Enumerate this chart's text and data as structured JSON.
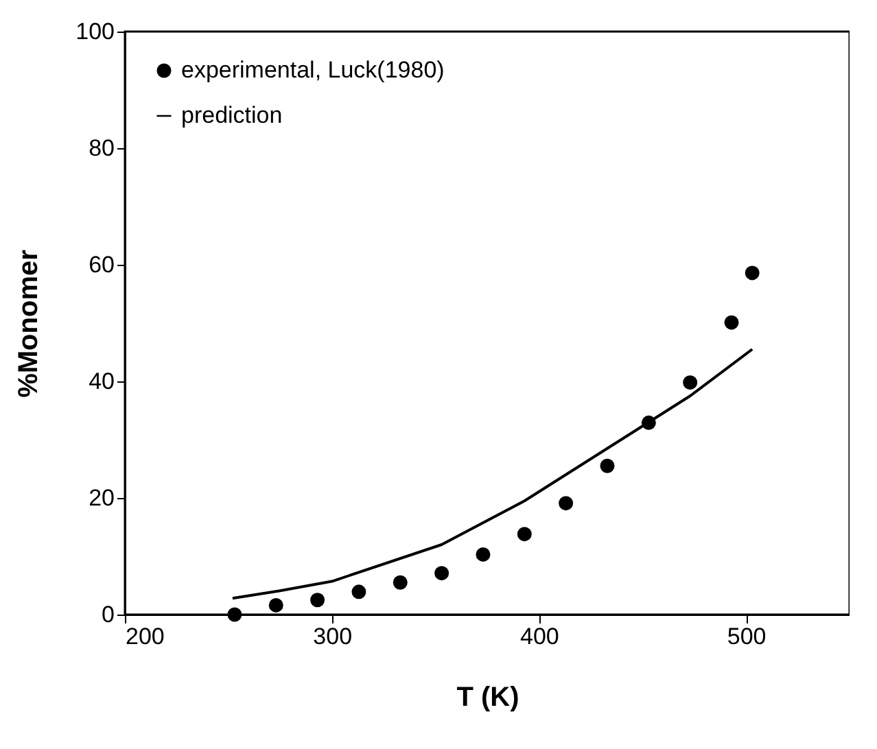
{
  "chart_data": {
    "type": "scatter",
    "xlabel": "T  (K)",
    "ylabel": "%Monomer",
    "xlim": [
      200,
      550
    ],
    "ylim": [
      0,
      100
    ],
    "xticks": [
      200,
      300,
      400,
      500
    ],
    "yticks": [
      0,
      20,
      40,
      60,
      80,
      100
    ],
    "grid": false,
    "legend": "top left",
    "series": [
      {
        "name": "experimental, Luck(1980)",
        "marker": "circle",
        "color": "#000000",
        "x": [
          253,
          273,
          293,
          313,
          333,
          353,
          373,
          393,
          413,
          433,
          453,
          473,
          493,
          503
        ],
        "values": [
          0,
          1.6,
          2.5,
          3.9,
          5.5,
          7.1,
          10.3,
          13.8,
          19.1,
          25.5,
          32.9,
          39.8,
          50.1,
          58.6
        ]
      },
      {
        "name": "prediction",
        "type": "line",
        "marker": "none",
        "line_style": "solid",
        "color": "#000000",
        "x": [
          252,
          275,
          300,
          353,
          393,
          433,
          473,
          503
        ],
        "values": [
          2.8,
          4.1,
          5.7,
          12,
          19.5,
          28.5,
          37.5,
          45.5
        ]
      }
    ]
  }
}
